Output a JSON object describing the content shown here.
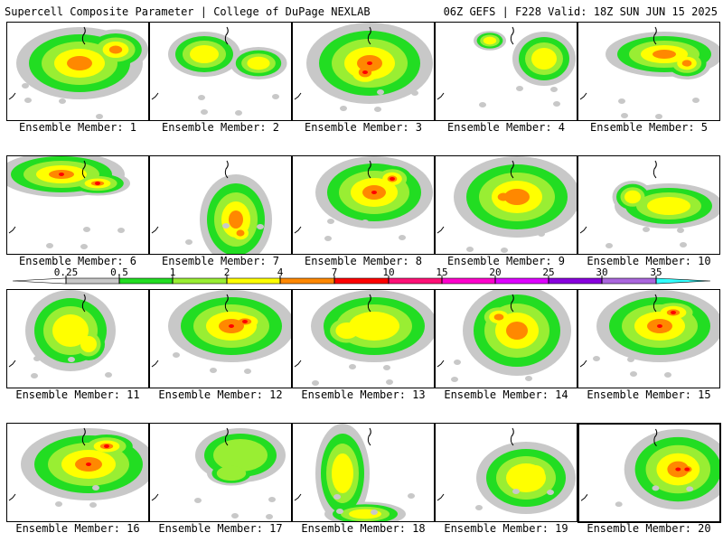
{
  "header": {
    "left_title": "Supercell Composite Parameter | College of DuPage NEXLAB",
    "right_title": "06Z GEFS | F228 Valid: 18Z SUN JUN 15 2025"
  },
  "label_prefix": "Ensemble Member: ",
  "members": [
    {
      "id": 1,
      "label": "Ensemble Member: 1",
      "max_level": "4"
    },
    {
      "id": 2,
      "label": "Ensemble Member: 2",
      "max_level": "2"
    },
    {
      "id": 3,
      "label": "Ensemble Member: 3",
      "max_level": "7"
    },
    {
      "id": 4,
      "label": "Ensemble Member: 4",
      "max_level": "2"
    },
    {
      "id": 5,
      "label": "Ensemble Member: 5",
      "max_level": "4"
    },
    {
      "id": 6,
      "label": "Ensemble Member: 6",
      "max_level": "7"
    },
    {
      "id": 7,
      "label": "Ensemble Member: 7",
      "max_level": "4"
    },
    {
      "id": 8,
      "label": "Ensemble Member: 8",
      "max_level": "7"
    },
    {
      "id": 9,
      "label": "Ensemble Member: 9",
      "max_level": "4"
    },
    {
      "id": 10,
      "label": "Ensemble Member: 10",
      "max_level": "2"
    },
    {
      "id": 11,
      "label": "Ensemble Member: 11",
      "max_level": "2"
    },
    {
      "id": 12,
      "label": "Ensemble Member: 12",
      "max_level": "10"
    },
    {
      "id": 13,
      "label": "Ensemble Member: 13",
      "max_level": "2"
    },
    {
      "id": 14,
      "label": "Ensemble Member: 14",
      "max_level": "4"
    },
    {
      "id": 15,
      "label": "Ensemble Member: 15",
      "max_level": "7"
    },
    {
      "id": 16,
      "label": "Ensemble Member: 16",
      "max_level": "7"
    },
    {
      "id": 17,
      "label": "Ensemble Member: 17",
      "max_level": "1"
    },
    {
      "id": 18,
      "label": "Ensemble Member: 18",
      "max_level": "2"
    },
    {
      "id": 19,
      "label": "Ensemble Member: 19",
      "max_level": "2"
    },
    {
      "id": 20,
      "label": "Ensemble Member: 20",
      "max_level": "7",
      "selected": true
    }
  ],
  "colorbar": {
    "levels": [
      "0.25",
      "0.5",
      "1",
      "2",
      "4",
      "7",
      "10",
      "15",
      "20",
      "25",
      "30",
      "35"
    ],
    "colors": [
      "#ffffff",
      "#c8c8c8",
      "#22dd22",
      "#99ee33",
      "#ffff00",
      "#ff8800",
      "#ff0000",
      "#ff1177",
      "#ff00cc",
      "#dd00ff",
      "#8800dd",
      "#aa66dd",
      "#33ffff"
    ]
  }
}
